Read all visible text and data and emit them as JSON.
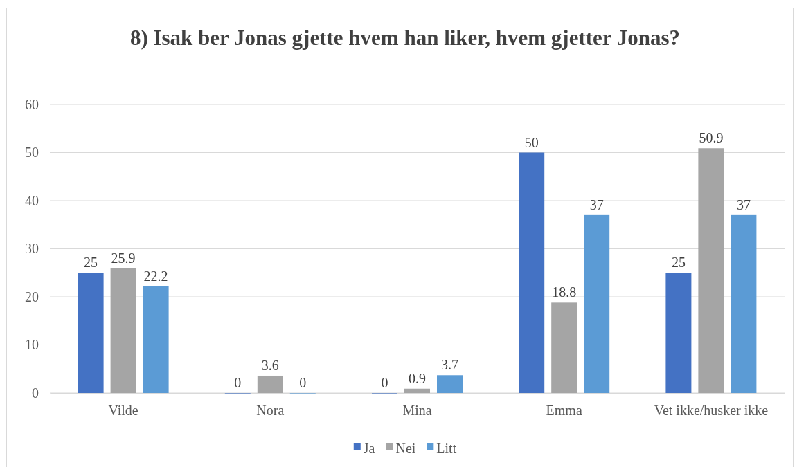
{
  "chart_data": {
    "type": "bar",
    "title": "8) Isak ber Jonas gjette hvem han liker, hvem gjetter Jonas?",
    "categories": [
      "Vilde",
      "Nora",
      "Mina",
      "Emma",
      "Vet ikke/husker ikke"
    ],
    "series": [
      {
        "name": "Ja",
        "color": "#4472c4",
        "values": [
          25,
          0,
          0,
          50,
          25
        ]
      },
      {
        "name": "Nei",
        "color": "#a5a5a5",
        "values": [
          25.9,
          3.6,
          0.9,
          18.8,
          50.9
        ]
      },
      {
        "name": "Litt",
        "color": "#5b9bd5",
        "values": [
          22.2,
          0,
          3.7,
          37,
          37
        ]
      }
    ],
    "ylim": [
      0,
      60
    ],
    "yticks": [
      0,
      10,
      20,
      30,
      40,
      50,
      60
    ],
    "grid": "y",
    "legend": "bottom",
    "data_labels": true
  }
}
